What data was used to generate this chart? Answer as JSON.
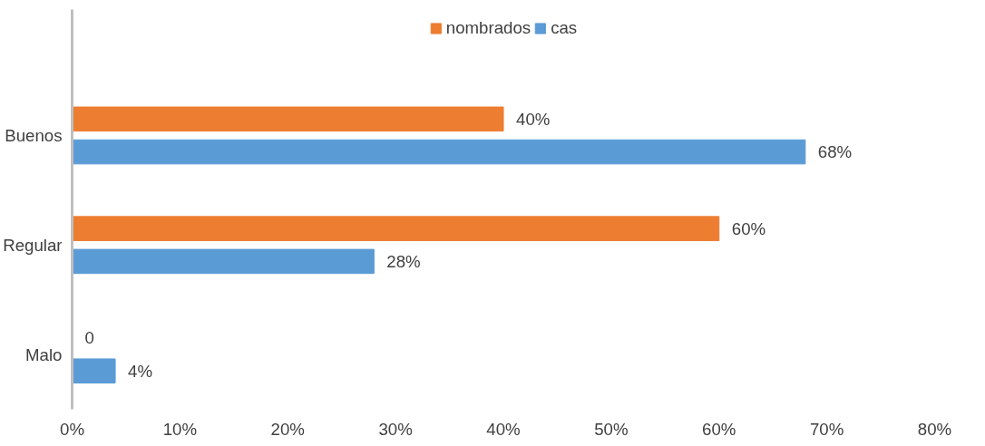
{
  "chart_data": {
    "type": "bar",
    "orientation": "horizontal",
    "categories": [
      "Buenos",
      "Regular",
      "Malo"
    ],
    "series": [
      {
        "name": "nombrados",
        "color": "#ed7d31",
        "values": [
          40,
          60,
          0
        ],
        "value_labels": [
          "40%",
          "60%",
          "0"
        ]
      },
      {
        "name": "cas",
        "color": "#5b9bd5",
        "values": [
          68,
          28,
          4
        ],
        "value_labels": [
          "68%",
          "28%",
          "4%"
        ]
      }
    ],
    "xlim": [
      0,
      80
    ],
    "xticks": [
      {
        "value": 0,
        "label": "0%"
      },
      {
        "value": 10,
        "label": "10%"
      },
      {
        "value": 20,
        "label": "20%"
      },
      {
        "value": 30,
        "label": "30%"
      },
      {
        "value": 40,
        "label": "40%"
      },
      {
        "value": 50,
        "label": "50%"
      },
      {
        "value": 60,
        "label": "60%"
      },
      {
        "value": 70,
        "label": "70%"
      },
      {
        "value": 80,
        "label": "80%"
      }
    ],
    "grid": false,
    "legend": "top"
  }
}
